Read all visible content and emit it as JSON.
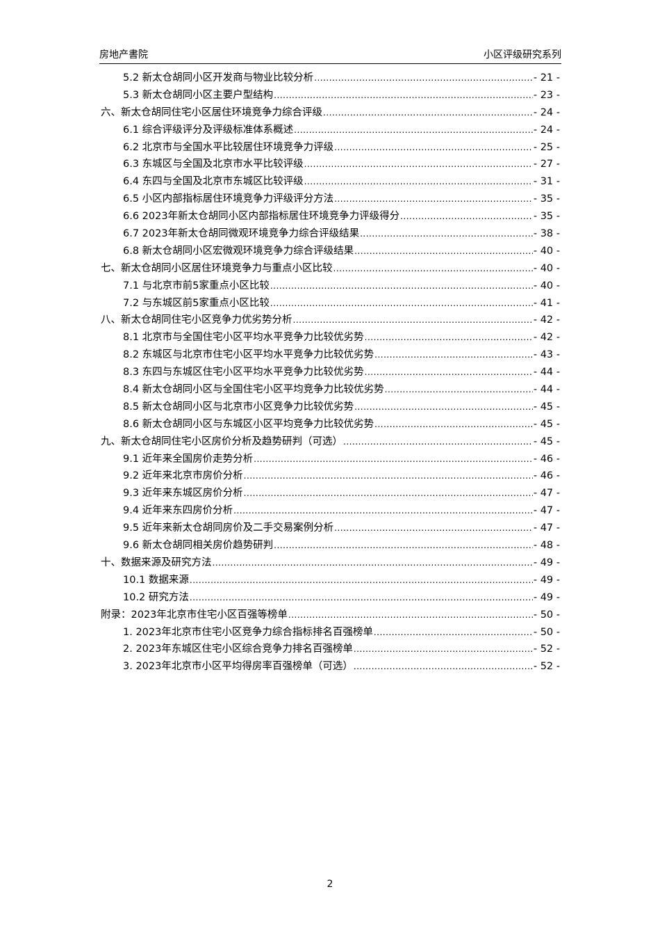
{
  "header": {
    "left": "房地产書院",
    "right": "小区评级研究系列"
  },
  "toc": [
    {
      "level": 2,
      "title": "5.2  新太仓胡同小区开发商与物业比较分析",
      "page": "- 21 -"
    },
    {
      "level": 2,
      "title": "5.3  新太仓胡同小区主要户型结构",
      "page": "- 23 -"
    },
    {
      "level": 1,
      "title": "六、新太仓胡同住宅小区居住环境竞争力综合评级",
      "page": "- 24 -"
    },
    {
      "level": 2,
      "title": "6.1  综合评级评分及评级标准体系概述",
      "page": "- 24 -"
    },
    {
      "level": 2,
      "title": "6.2  北京市与全国水平比较居住环境竞争力评级",
      "page": "- 25 -"
    },
    {
      "level": 2,
      "title": "6.3  东城区与全国及北京市水平比较评级",
      "page": "- 27 -"
    },
    {
      "level": 2,
      "title": "6.4  东四与全国及北京市东城区比较评级",
      "page": "- 31 -"
    },
    {
      "level": 2,
      "title": "6.5  小区内部指标居住环境竞争力评级评分方法",
      "page": "- 35 -"
    },
    {
      "level": 2,
      "title": "6.6 2023年新太仓胡同小区内部指标居住环境竞争力评级得分",
      "page": "- 35 -"
    },
    {
      "level": 2,
      "title": "6.7 2023年新太仓胡同微观环境竞争力综合评级结果",
      "page": "- 38 -"
    },
    {
      "level": 2,
      "title": "6.8  新太仓胡同小区宏微观环境竞争力综合评级结果",
      "page": "- 40 -"
    },
    {
      "level": 1,
      "title": "七、新太仓胡同小区居住环境竞争力与重点小区比较",
      "page": "- 40 -"
    },
    {
      "level": 2,
      "title": "7.1  与北京市前5家重点小区比较",
      "page": "- 40 -"
    },
    {
      "level": 2,
      "title": "7.2  与东城区前5家重点小区比较",
      "page": "- 41 -"
    },
    {
      "level": 1,
      "title": "八、新太仓胡同住宅小区竞争力优劣势分析",
      "page": "- 42 -"
    },
    {
      "level": 2,
      "title": "8.1  北京市与全国住宅小区平均水平竞争力比较优劣势",
      "page": "- 42 -"
    },
    {
      "level": 2,
      "title": "8.2  东城区与北京市住宅小区平均水平竞争力比较优劣势",
      "page": "- 43 -"
    },
    {
      "level": 2,
      "title": "8.3  东四与东城区住宅小区平均水平竞争力比较优劣势",
      "page": "- 44 -"
    },
    {
      "level": 2,
      "title": "8.4  新太仓胡同小区与全国住宅小区平均竞争力比较优劣势",
      "page": "- 44 -"
    },
    {
      "level": 2,
      "title": "8.5  新太仓胡同小区与北京市小区竞争力比较优劣势",
      "page": "- 45 -"
    },
    {
      "level": 2,
      "title": "8.6  新太仓胡同小区与东城区小区平均竞争力比较优劣势",
      "page": "- 45 -"
    },
    {
      "level": 1,
      "title": "九、新太仓胡同住宅小区房价分析及趋势研判（可选）",
      "page": "- 45 -"
    },
    {
      "level": 2,
      "title": "9.1  近年来全国房价走势分析",
      "page": "- 46 -"
    },
    {
      "level": 2,
      "title": "9.2  近年来北京市房价分析",
      "page": "- 46 -"
    },
    {
      "level": 2,
      "title": "9.3  近年来东城区房价分析",
      "page": "- 47 -"
    },
    {
      "level": 2,
      "title": "9.4  近年来东四房价分析",
      "page": "- 47 -"
    },
    {
      "level": 2,
      "title": "9.5  近年来新太仓胡同房价及二手交易案例分析",
      "page": "- 47 -"
    },
    {
      "level": 2,
      "title": "9.6  新太仓胡同相关房价趋势研判",
      "page": "- 48 -"
    },
    {
      "level": 1,
      "title": "十、数据来源及研究方法",
      "page": "- 49 -"
    },
    {
      "level": 2,
      "title": "10.1  数据来源",
      "page": "- 49 -"
    },
    {
      "level": 2,
      "title": "10.2  研究方法",
      "page": "- 49 -"
    },
    {
      "level": 1,
      "title": "附录：2023年北京市住宅小区百强等榜单",
      "page": "- 50 -"
    },
    {
      "level": 2,
      "title": "1.  2023年北京市住宅小区竞争力综合指标排名百强榜单",
      "page": "- 50 -"
    },
    {
      "level": 2,
      "title": "2.  2023年东城区住宅小区综合竞争力排名百强榜单",
      "page": "- 52 -"
    },
    {
      "level": 2,
      "title": "3.  2023年北京市小区平均得房率百强榜单（可选）",
      "page": "- 52 -"
    }
  ],
  "footer": {
    "page_number": "2"
  }
}
